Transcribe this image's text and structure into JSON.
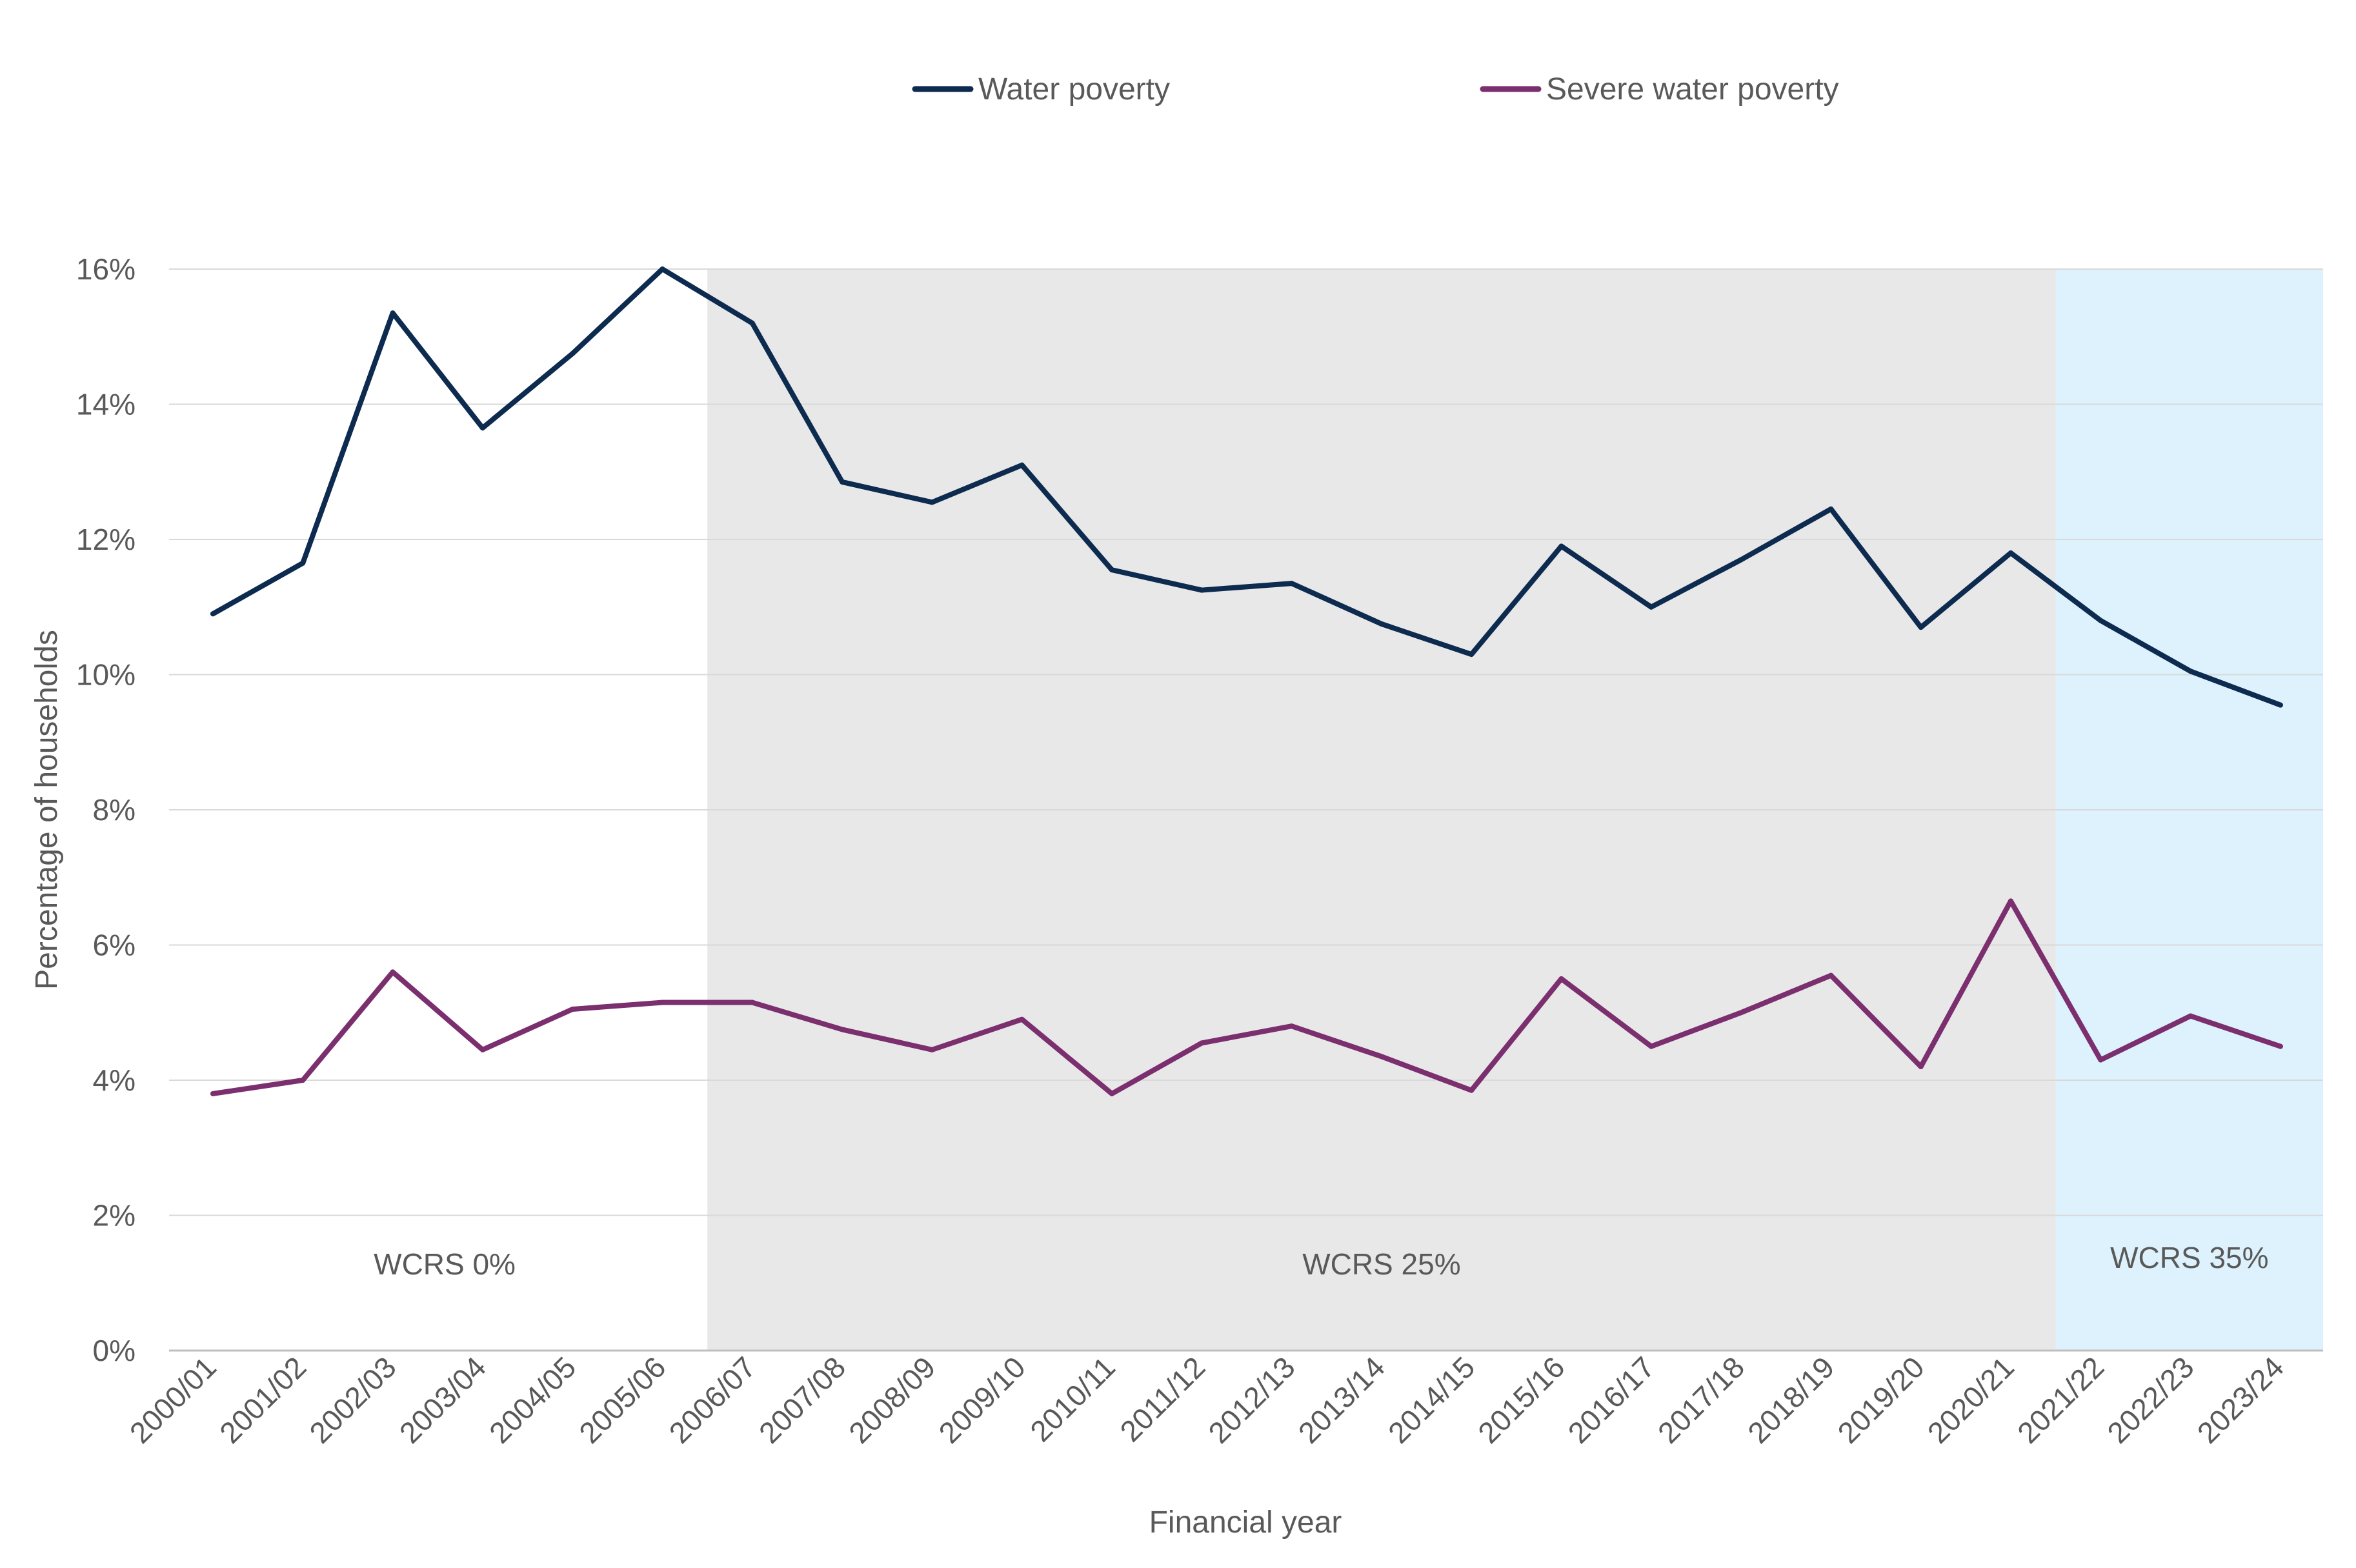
{
  "chart_data": {
    "type": "line",
    "title": "",
    "xlabel": "Financial year",
    "ylabel": "Percentage of households",
    "ylim": [
      0,
      16
    ],
    "yticks": [
      0,
      2,
      4,
      6,
      8,
      10,
      12,
      14,
      16
    ],
    "ytick_labels": [
      "0%",
      "2%",
      "4%",
      "6%",
      "8%",
      "10%",
      "12%",
      "14%",
      "16%"
    ],
    "grid": true,
    "legend_position": "top-center",
    "categories": [
      "2000/01",
      "2001/02",
      "2002/03",
      "2003/04",
      "2004/05",
      "2005/06",
      "2006/07",
      "2007/08",
      "2008/09",
      "2009/10",
      "2010/11",
      "2011/12",
      "2012/13",
      "2013/14",
      "2014/15",
      "2015/16",
      "2016/17",
      "2017/18",
      "2018/19",
      "2019/20",
      "2020/21",
      "2021/22",
      "2022/23",
      "2023/24"
    ],
    "series": [
      {
        "name": "Water poverty",
        "color": "#0d2a4f",
        "values": [
          10.9,
          11.65,
          15.35,
          13.65,
          14.75,
          16.0,
          15.2,
          12.85,
          12.55,
          13.1,
          11.55,
          11.25,
          11.35,
          10.75,
          10.3,
          11.9,
          11.0,
          11.7,
          12.45,
          10.7,
          11.8,
          10.8,
          10.05,
          9.55
        ]
      },
      {
        "name": "Severe water poverty",
        "color": "#7b2f6e",
        "values": [
          3.8,
          4.0,
          5.6,
          4.45,
          5.05,
          5.15,
          5.15,
          4.75,
          4.45,
          4.9,
          3.8,
          4.55,
          4.8,
          4.35,
          3.85,
          5.5,
          4.5,
          5.0,
          5.55,
          4.2,
          6.65,
          4.3,
          4.95,
          4.5
        ]
      }
    ],
    "regions": [
      {
        "label": "WCRS 0%",
        "from": "2000/01",
        "to": "2005/06",
        "color": "#ffffff"
      },
      {
        "label": "WCRS 25%",
        "from": "2006/07",
        "to": "2020/21",
        "color": "#e8e8e8"
      },
      {
        "label": "WCRS 35%",
        "from": "2021/22",
        "to": "2023/24",
        "color": "#ddf2fc"
      }
    ]
  }
}
